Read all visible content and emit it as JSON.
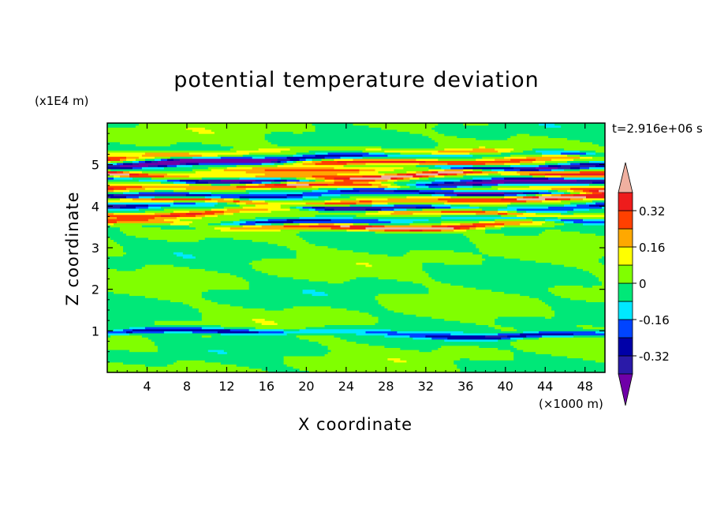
{
  "chart_data": {
    "type": "heatmap",
    "title": "potential temperature deviation",
    "xlabel": "X coordinate",
    "ylabel": "Z coordinate",
    "x_unit_label": "(×1000 m)",
    "z_unit_label": "(x1E4 m)",
    "time_label": "t=2.916e+06 s",
    "xlim": [
      0,
      50
    ],
    "ylim": [
      0,
      6
    ],
    "x_ticks": [
      4,
      8,
      12,
      16,
      20,
      24,
      28,
      32,
      36,
      40,
      44,
      48
    ],
    "y_ticks": [
      1,
      2,
      3,
      4,
      5
    ],
    "colorbar": {
      "tick_labels": [
        "0.32",
        "0.16",
        "0",
        "-0.16",
        "-0.32"
      ],
      "tick_values": [
        0.32,
        0.16,
        0,
        -0.16,
        -0.32
      ],
      "levels": [
        -0.4,
        -0.32,
        -0.24,
        -0.16,
        -0.08,
        0,
        0.08,
        0.16,
        0.24,
        0.32,
        0.4
      ],
      "colors": [
        "#6f00a8",
        "#2a1aa8",
        "#0000a8",
        "#0044ff",
        "#00e8ff",
        "#00e878",
        "#80ff00",
        "#ffff00",
        "#ffa800",
        "#ff4000",
        "#ee1c1c",
        "#f0b0a0"
      ],
      "extend": "both"
    },
    "bands": [
      {
        "z": 0.95,
        "value": -0.3
      },
      {
        "z": 3.55,
        "value": 0.45
      },
      {
        "z": 3.65,
        "value": -0.3
      },
      {
        "z": 3.85,
        "value": 0.3
      },
      {
        "z": 4.0,
        "value": -0.45
      },
      {
        "z": 4.15,
        "value": 0.45
      },
      {
        "z": 4.3,
        "value": -0.45
      },
      {
        "z": 4.45,
        "value": 0.45
      },
      {
        "z": 4.6,
        "value": -0.45
      },
      {
        "z": 4.75,
        "value": 0.45
      },
      {
        "z": 4.85,
        "value": 0.2
      },
      {
        "z": 5.0,
        "value": -0.45
      },
      {
        "z": 5.1,
        "value": 0.45
      },
      {
        "z": 5.2,
        "value": -0.35
      },
      {
        "z": 5.3,
        "value": 0.2
      }
    ]
  },
  "colors": {
    "background": "#ffffff",
    "axis": "#000000",
    "field_base_low": "#80ff00",
    "field_base_mid": "#00e878"
  }
}
